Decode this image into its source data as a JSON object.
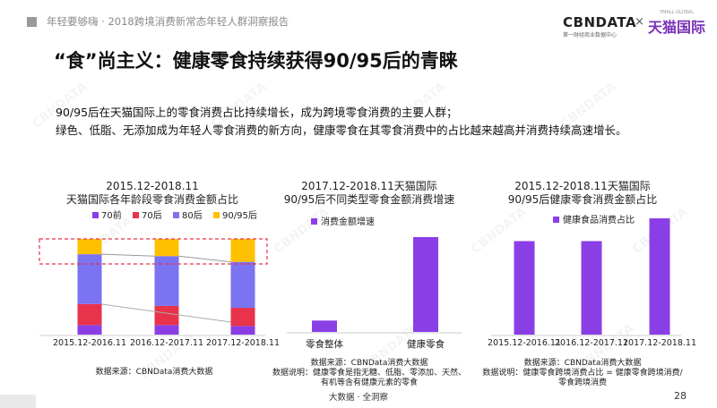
{
  "header": {
    "subtitle": "年轻要够嗨 · 2018跨境消费新常态年轻人群洞察报告",
    "logo_left": "CBΝDATA",
    "logo_left_sub": "第一财经商业数据中心",
    "logo_x": "×",
    "logo_right": "天猫国际",
    "logo_right_small": "TMALL GLOBAL"
  },
  "title": "“食”尚主义：健康零食持续获得90/95后的青睐",
  "body": {
    "line1": "90/95后在天猫国际上的零食消费占比持续增长，成为跨境零食消费的主要人群；",
    "line2": "绿色、低脂、无添加成为年轻人零食消费的新方向，健康零食在其零食消费中的占比越来越高并消费持续高速增长。"
  },
  "watermark": "CBNDATA",
  "colors": {
    "purple": "#8a3fe6",
    "red": "#e8334a",
    "blue": "#7a73f2",
    "yellow": "#ffc000",
    "dashed": "#e8334a"
  },
  "chart_data": [
    {
      "type": "bar",
      "stacked": true,
      "title_line1": "2015.12-2018.11",
      "title_line2": "天猫国际各年龄段零食消费金额占比",
      "categories": [
        "2015.12-2016.11",
        "2016.12-2017.11",
        "2017.12-2018.11"
      ],
      "series": [
        {
          "name": "70前",
          "color": "#8a3fe6",
          "values": [
            10,
            10,
            9
          ]
        },
        {
          "name": "70后",
          "color": "#e8334a",
          "values": [
            22,
            20,
            19
          ]
        },
        {
          "name": "80后",
          "color": "#7a73f2",
          "values": [
            52,
            52,
            48
          ]
        },
        {
          "name": "90/95后",
          "color": "#ffc000",
          "values": [
            16,
            18,
            24
          ]
        }
      ],
      "ylim": [
        0,
        100
      ],
      "legend": "top",
      "source": "数据来源：CBNData消费大数据"
    },
    {
      "type": "bar",
      "title_line1": "2017.12-2018.11天猫国际",
      "title_line2": "90/95后不同类型零食金额消费增速",
      "categories": [
        "零食整体",
        "健康零食"
      ],
      "series": [
        {
          "name": "消费金额增速",
          "color": "#8a3fe6",
          "values": [
            12,
            100
          ]
        }
      ],
      "legend": "top-left",
      "source": "数据来源：CBNData消费大数据",
      "note_line1": "数据说明：健康零食是指无糖、低脂、零添加、天然、",
      "note_line2": "有机等含有健康元素的零食"
    },
    {
      "type": "bar",
      "title_line1": "2015.12-2018.11天猫国际",
      "title_line2": "90/95后健康零食消费金额占比",
      "categories": [
        "2015.12-2016.11",
        "2016.12-2017.11",
        "2017.12-2018.11"
      ],
      "series": [
        {
          "name": "健康食品消费占比",
          "color": "#8a3fe6",
          "values": [
            78,
            78,
            97
          ]
        }
      ],
      "legend": "top-left",
      "source": "数据来源：CBNData消费大数据",
      "note_line1": "数据说明：健康零食跨境消费占比 = 健康零食跨境消费/",
      "note_line2": "零食跨境消费"
    }
  ],
  "footer": "大数据 · 全洞察",
  "page_number": "28"
}
